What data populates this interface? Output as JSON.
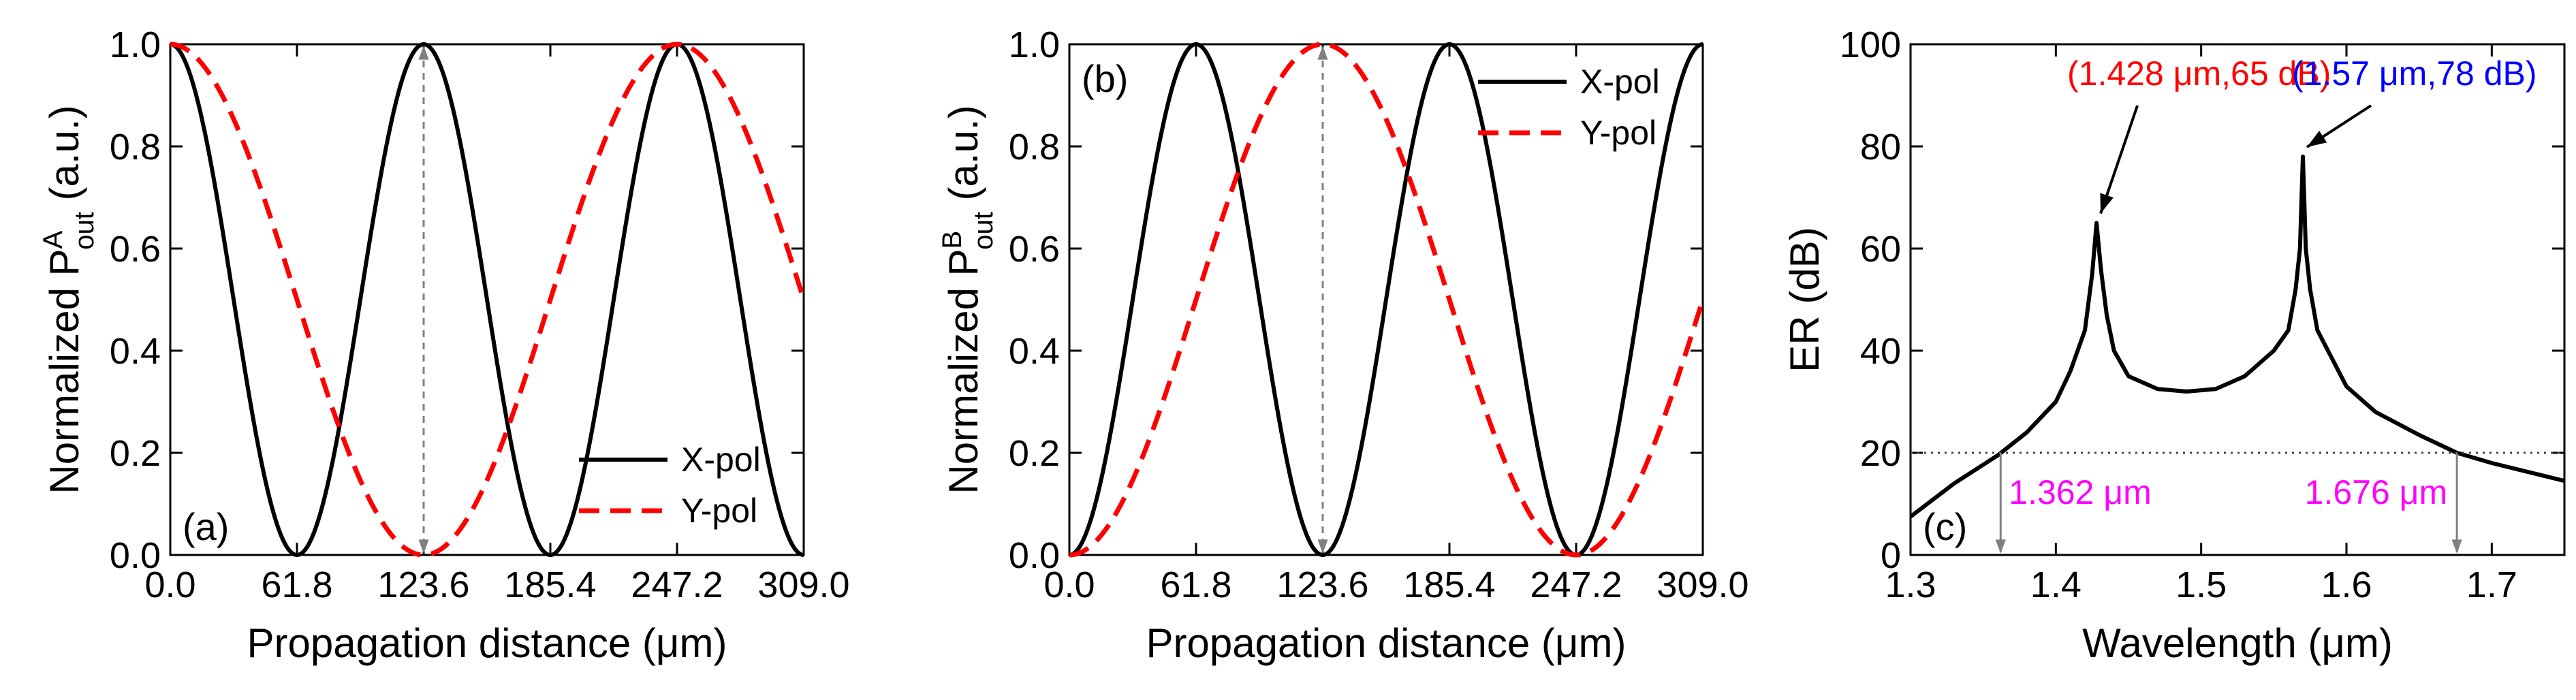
{
  "colors": {
    "xpol": "#000000",
    "ypol": "#ff0000",
    "annot_red": "#ff0000",
    "annot_blue": "#0000ff",
    "annot_magenta": "#ff00ff",
    "guide": "#808080"
  },
  "chart_data": [
    {
      "type": "line",
      "panel_label": "(a)",
      "xlabel": "Propagation distance (μm)",
      "ylabel_prefix": "Normalized P",
      "ylabel_sup": "A",
      "ylabel_sub": "out",
      "ylabel_suffix": " (a.u.)",
      "xlim": [
        0,
        309
      ],
      "ylim": [
        0,
        1
      ],
      "xticks": [
        0,
        61.8,
        123.6,
        185.4,
        247.2,
        309
      ],
      "xtick_labels": [
        "0.0",
        "61.8",
        "123.6",
        "185.4",
        "247.2",
        "309.0"
      ],
      "yticks": [
        0,
        0.2,
        0.4,
        0.6,
        0.8,
        1.0
      ],
      "ytick_labels": [
        "0.0",
        "0.2",
        "0.4",
        "0.6",
        "0.8",
        "1.0"
      ],
      "legend": [
        "X-pol",
        "Y-pol"
      ],
      "legend_position": "bottom-right",
      "series": [
        {
          "name": "X-pol",
          "style": "solid",
          "function": "cos2",
          "coupling_length": 61.8,
          "phase": "cos"
        },
        {
          "name": "Y-pol",
          "style": "dashed",
          "function": "cos2",
          "coupling_length": 123.6,
          "phase": "cos"
        }
      ],
      "vline_x": 123.6
    },
    {
      "type": "line",
      "panel_label": "(b)",
      "xlabel": "Propagation distance (μm)",
      "ylabel_prefix": "Normalized P",
      "ylabel_sup": "B",
      "ylabel_sub": "out",
      "ylabel_suffix": " (a.u.)",
      "xlim": [
        0,
        309
      ],
      "ylim": [
        0,
        1
      ],
      "xticks": [
        0,
        61.8,
        123.6,
        185.4,
        247.2,
        309
      ],
      "xtick_labels": [
        "0.0",
        "61.8",
        "123.6",
        "185.4",
        "247.2",
        "309.0"
      ],
      "yticks": [
        0,
        0.2,
        0.4,
        0.6,
        0.8,
        1.0
      ],
      "ytick_labels": [
        "0.0",
        "0.2",
        "0.4",
        "0.6",
        "0.8",
        "1.0"
      ],
      "legend": [
        "X-pol",
        "Y-pol"
      ],
      "legend_position": "top-right",
      "series": [
        {
          "name": "X-pol",
          "style": "solid",
          "function": "sin2",
          "coupling_length": 61.8,
          "phase": "sin"
        },
        {
          "name": "Y-pol",
          "style": "dashed",
          "function": "sin2",
          "coupling_length": 123.6,
          "phase": "sin"
        }
      ],
      "vline_x": 123.6
    },
    {
      "type": "line",
      "panel_label": "(c)",
      "xlabel": "Wavelength (μm)",
      "ylabel": "ER (dB)",
      "xlim": [
        1.3,
        1.75
      ],
      "ylim": [
        0,
        100
      ],
      "xticks": [
        1.3,
        1.4,
        1.5,
        1.6,
        1.7
      ],
      "xtick_labels": [
        "1.3",
        "1.4",
        "1.5",
        "1.6",
        "1.7"
      ],
      "yticks": [
        0,
        20,
        40,
        60,
        80,
        100
      ],
      "ytick_labels": [
        "0",
        "20",
        "40",
        "60",
        "80",
        "100"
      ],
      "series": [
        {
          "name": "ER",
          "style": "solid",
          "x": [
            1.3,
            1.33,
            1.36,
            1.38,
            1.4,
            1.41,
            1.42,
            1.425,
            1.428,
            1.431,
            1.435,
            1.44,
            1.45,
            1.47,
            1.49,
            1.51,
            1.53,
            1.55,
            1.56,
            1.565,
            1.568,
            1.57,
            1.572,
            1.575,
            1.58,
            1.6,
            1.62,
            1.65,
            1.676,
            1.7,
            1.75
          ],
          "y": [
            7.5,
            14,
            19.5,
            24,
            30,
            36,
            44,
            55,
            65,
            56,
            47,
            40,
            35,
            32.5,
            32,
            32.5,
            35,
            40,
            44,
            52,
            60,
            78,
            60,
            52,
            44,
            33,
            28,
            23.5,
            20,
            18,
            14.5
          ]
        }
      ],
      "hline_y": 20,
      "crossings": [
        {
          "x": 1.362,
          "label": "1.362 μm"
        },
        {
          "x": 1.676,
          "label": "1.676 μm"
        }
      ],
      "annotations": [
        {
          "label": "(1.428 μm,65 dB)",
          "x": 1.428,
          "y": 65,
          "color": "annot_red"
        },
        {
          "label": "(1.57 μm,78 dB)",
          "x": 1.57,
          "y": 78,
          "color": "annot_blue"
        }
      ]
    }
  ]
}
